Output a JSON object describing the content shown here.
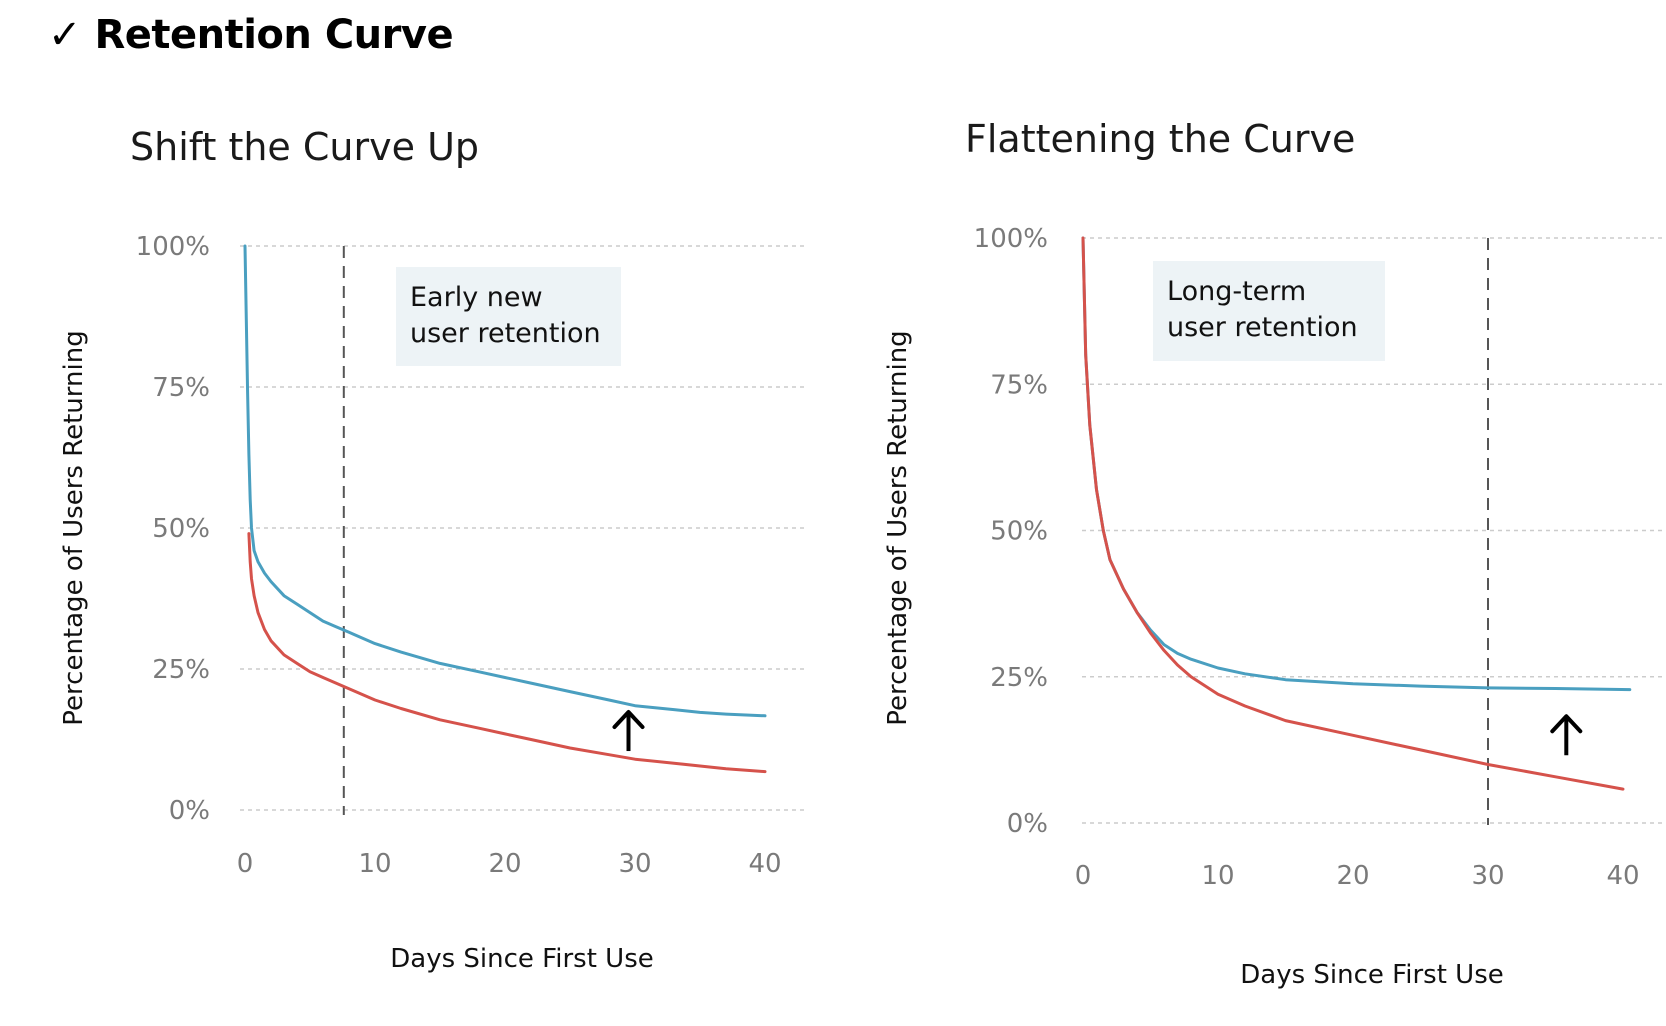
{
  "page": {
    "title": "✓ Retention Curve"
  },
  "chart_data": [
    {
      "type": "line",
      "title": "Shift the Curve Up",
      "xlabel": "Days Since First Use",
      "ylabel": "Percentage of Users Returning",
      "xlim": [
        0,
        43
      ],
      "ylim": [
        0,
        100
      ],
      "x_ticks": [
        0,
        10,
        20,
        30,
        40
      ],
      "y_ticks": [
        0,
        25,
        50,
        75,
        100
      ],
      "y_tick_labels": [
        "0%",
        "25%",
        "50%",
        "75%",
        "100%"
      ],
      "grid": "horizontal dashed",
      "vline": 7.6,
      "annotation": {
        "lines": [
          "Early new",
          "user retention"
        ]
      },
      "arrow": {
        "x": 29.5,
        "y": 14
      },
      "series": [
        {
          "color": "#4a9fc0",
          "x": [
            0,
            0.1,
            0.2,
            0.3,
            0.4,
            0.5,
            0.7,
            1,
            1.5,
            2,
            3,
            4,
            5,
            6,
            7,
            8,
            10,
            12,
            15,
            18,
            20,
            22,
            25,
            28,
            30,
            33,
            35,
            37,
            40
          ],
          "y": [
            100,
            87,
            74,
            63,
            55,
            50,
            46,
            44,
            42,
            40.5,
            38,
            36.5,
            35,
            33.5,
            32.5,
            31.5,
            29.5,
            28,
            26,
            24.5,
            23.5,
            22.5,
            21,
            19.5,
            18.5,
            17.8,
            17.3,
            17,
            16.7
          ]
        },
        {
          "color": "#d5524b",
          "x": [
            0.3,
            0.4,
            0.5,
            0.7,
            1,
            1.5,
            2,
            3,
            4,
            5,
            6,
            7,
            8,
            10,
            12,
            15,
            18,
            20,
            22,
            25,
            28,
            30,
            33,
            35,
            37,
            40
          ],
          "y": [
            49,
            44,
            41,
            38,
            35,
            32,
            30,
            27.5,
            26,
            24.5,
            23.5,
            22.5,
            21.5,
            19.5,
            18,
            16,
            14.5,
            13.5,
            12.5,
            11,
            9.8,
            9,
            8.3,
            7.8,
            7.3,
            6.8
          ]
        }
      ]
    },
    {
      "type": "line",
      "title": "Flattening the Curve",
      "xlabel": "Days Since First Use",
      "ylabel": "Percentage of Users Returning",
      "xlim": [
        0,
        43
      ],
      "ylim": [
        0,
        100
      ],
      "x_ticks": [
        0,
        10,
        20,
        30,
        40
      ],
      "y_ticks": [
        0,
        25,
        50,
        75,
        100
      ],
      "y_tick_labels": [
        "0%",
        "25%",
        "50%",
        "75%",
        "100%"
      ],
      "grid": "horizontal dashed",
      "vline": 30,
      "annotation": {
        "lines": [
          "Long-term",
          "user retention"
        ]
      },
      "arrow": {
        "x": 35.8,
        "y": 15
      },
      "series": [
        {
          "color": "#4a9fc0",
          "x": [
            0,
            0.2,
            0.5,
            1,
            1.5,
            2,
            3,
            4,
            5,
            6,
            7,
            8,
            10,
            12,
            15,
            20,
            25,
            30,
            35,
            40.5
          ],
          "y": [
            100,
            80,
            68,
            57,
            50,
            45,
            40,
            36,
            33,
            30.5,
            29,
            28,
            26.5,
            25.5,
            24.5,
            23.8,
            23.4,
            23.1,
            23,
            22.8
          ]
        },
        {
          "color": "#d5524b",
          "x": [
            0,
            0.2,
            0.5,
            1,
            1.5,
            2,
            3,
            4,
            5,
            6,
            7,
            8,
            10,
            12,
            15,
            20,
            25,
            30,
            35,
            40
          ],
          "y": [
            100,
            80,
            68,
            57,
            50,
            45,
            40,
            36,
            32.5,
            29.5,
            27,
            25,
            22,
            20,
            17.5,
            15,
            12.5,
            10,
            7.9,
            5.8
          ]
        }
      ]
    }
  ]
}
